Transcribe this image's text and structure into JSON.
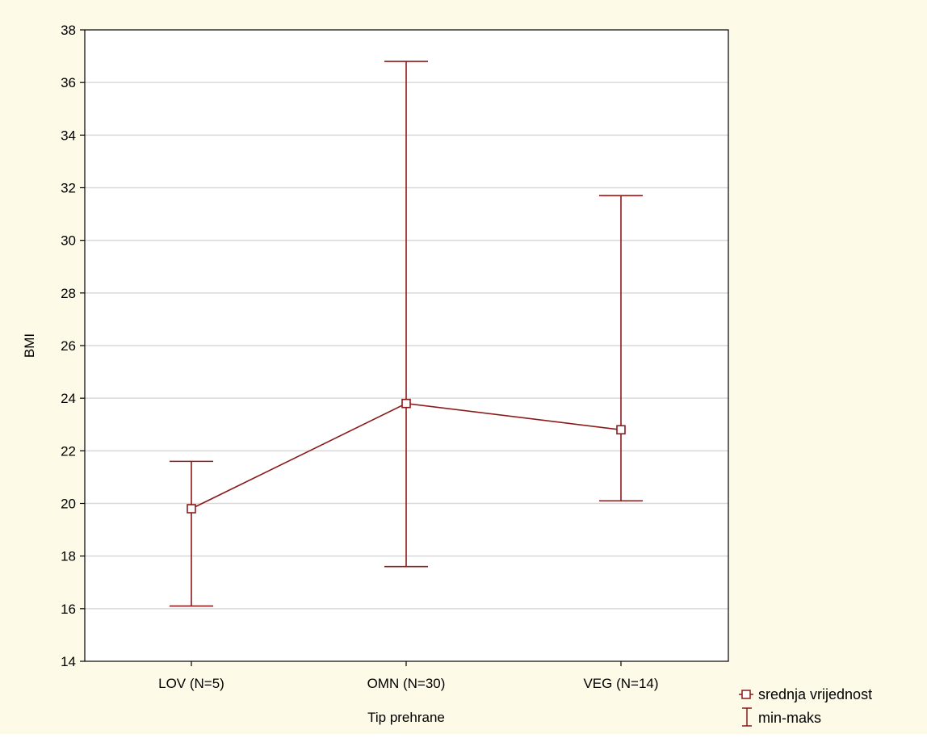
{
  "chart_data": {
    "type": "line",
    "title": "",
    "xlabel": "Tip prehrane",
    "ylabel": "BMI",
    "categories": [
      "LOV (N=5)",
      "OMN (N=30)",
      "VEG (N=14)"
    ],
    "series": [
      {
        "name": "srednja vrijednost",
        "values": [
          19.8,
          23.8,
          22.8
        ]
      }
    ],
    "ranges": {
      "name": "min-maks",
      "min": [
        16.1,
        17.6,
        20.1
      ],
      "max": [
        21.6,
        36.8,
        31.7
      ]
    },
    "ylim": [
      14,
      38
    ],
    "yticks": [
      "14",
      "16",
      "18",
      "20",
      "22",
      "24",
      "26",
      "28",
      "30",
      "32",
      "34",
      "36",
      "38"
    ],
    "grid": true,
    "legend_position": "bottom-right",
    "colors": {
      "series": "#8b1a1a",
      "background": "#fefae8",
      "grid": "#d9d9d9",
      "axis": "#000000"
    }
  }
}
